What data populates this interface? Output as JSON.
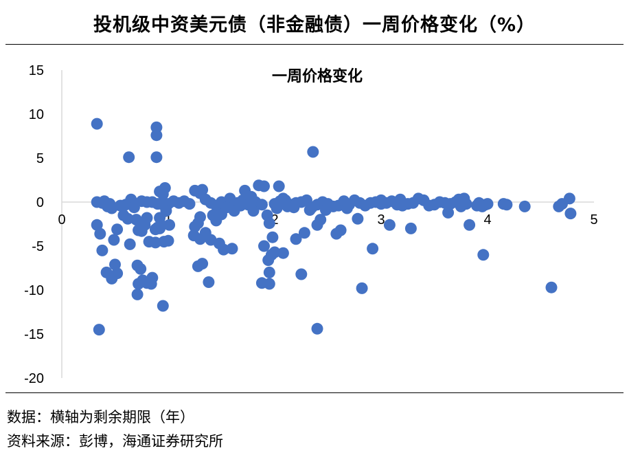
{
  "figure": {
    "title": "投机级中资美元债（非金融债）一周价格变化（%）",
    "source_note": "数据：横轴为剩余期限（年）",
    "source_credit": "资料来源：彭博，海通证券研究所"
  },
  "chart_data": {
    "type": "scatter",
    "title": "一周价格变化",
    "xlabel": "",
    "ylabel": "",
    "xlim": [
      0,
      5
    ],
    "ylim": [
      -20,
      15
    ],
    "xticks": [
      0,
      1,
      2,
      3,
      4,
      5
    ],
    "yticks": [
      15,
      10,
      5,
      0,
      -5,
      -10,
      -15,
      -20
    ],
    "grid": false,
    "marker_color": "#4472C4",
    "points": [
      [
        0.35,
        -14.5
      ],
      [
        0.33,
        -2.6
      ],
      [
        0.36,
        -3.6
      ],
      [
        0.38,
        -5.5
      ],
      [
        0.42,
        -8.0
      ],
      [
        0.47,
        -8.7
      ],
      [
        0.5,
        -7.1
      ],
      [
        0.52,
        -8.1
      ],
      [
        0.49,
        -4.3
      ],
      [
        0.52,
        -3.1
      ],
      [
        0.47,
        -0.7
      ],
      [
        0.43,
        -0.5
      ],
      [
        0.38,
        -0.1
      ],
      [
        0.4,
        0.1
      ],
      [
        0.33,
        0.0
      ],
      [
        0.45,
        -0.2
      ],
      [
        0.55,
        -0.4
      ],
      [
        0.6,
        -0.3
      ],
      [
        0.62,
        -1.9
      ],
      [
        0.58,
        -1.5
      ],
      [
        0.65,
        0.3
      ],
      [
        0.68,
        -0.6
      ],
      [
        0.7,
        -2.0
      ],
      [
        0.72,
        -3.2
      ],
      [
        0.75,
        -3.3
      ],
      [
        0.78,
        -2.6
      ],
      [
        0.8,
        -1.8
      ],
      [
        0.64,
        -4.8
      ],
      [
        0.71,
        -7.2
      ],
      [
        0.74,
        -7.6
      ],
      [
        0.76,
        -8.9
      ],
      [
        0.8,
        -9.2
      ],
      [
        0.72,
        -9.3
      ],
      [
        0.71,
        -10.5
      ],
      [
        0.85,
        -8.6
      ],
      [
        0.84,
        -9.3
      ],
      [
        0.63,
        5.1
      ],
      [
        0.75,
        0.1
      ],
      [
        0.8,
        0.0
      ],
      [
        0.85,
        0.0
      ],
      [
        0.9,
        -0.2
      ],
      [
        0.95,
        -0.3
      ],
      [
        0.98,
        -0.5
      ],
      [
        1.0,
        -0.2
      ],
      [
        1.05,
        0.1
      ],
      [
        0.82,
        -4.5
      ],
      [
        0.92,
        -1.8
      ],
      [
        0.98,
        -1.0
      ],
      [
        0.89,
        8.5
      ],
      [
        0.89,
        7.6
      ],
      [
        0.92,
        1.2
      ],
      [
        0.89,
        5.1
      ],
      [
        0.95,
        0.9
      ],
      [
        0.97,
        1.6
      ],
      [
        0.88,
        -3.1
      ],
      [
        0.9,
        -2.9
      ],
      [
        0.93,
        -2.6
      ],
      [
        0.96,
        -4.5
      ],
      [
        1.0,
        -4.4
      ],
      [
        0.88,
        -4.6
      ],
      [
        0.92,
        -3.0
      ],
      [
        1.01,
        -2.6
      ],
      [
        0.95,
        -11.8
      ],
      [
        0.33,
        8.9
      ],
      [
        1.1,
        -0.1
      ],
      [
        1.15,
        0.1
      ],
      [
        1.2,
        -0.2
      ],
      [
        1.25,
        1.3
      ],
      [
        1.3,
        1.0
      ],
      [
        1.32,
        1.4
      ],
      [
        1.28,
        -2.4
      ],
      [
        1.3,
        -1.7
      ],
      [
        1.25,
        -2.8
      ],
      [
        1.24,
        -3.8
      ],
      [
        1.3,
        -4.2
      ],
      [
        1.35,
        -3.5
      ],
      [
        1.4,
        -4.3
      ],
      [
        1.28,
        -7.3
      ],
      [
        1.32,
        -7.0
      ],
      [
        1.35,
        0.3
      ],
      [
        1.4,
        -0.1
      ],
      [
        1.45,
        -0.4
      ],
      [
        1.42,
        -1.5
      ],
      [
        1.45,
        -2.1
      ],
      [
        1.5,
        -1.4
      ],
      [
        1.55,
        -0.3
      ],
      [
        1.58,
        0.4
      ],
      [
        1.6,
        -0.2
      ],
      [
        1.48,
        -4.7
      ],
      [
        1.52,
        -5.4
      ],
      [
        1.6,
        -5.3
      ],
      [
        1.38,
        -9.1
      ],
      [
        1.65,
        -0.1
      ],
      [
        1.7,
        0.2
      ],
      [
        1.72,
        1.3
      ],
      [
        1.78,
        0.6
      ],
      [
        1.82,
        0.0
      ],
      [
        1.85,
        1.9
      ],
      [
        1.9,
        1.8
      ],
      [
        1.8,
        -1.0
      ],
      [
        1.88,
        -0.3
      ],
      [
        1.93,
        -1.5
      ],
      [
        1.95,
        -2.4
      ],
      [
        1.98,
        -4.0
      ],
      [
        1.9,
        -5.0
      ],
      [
        1.94,
        -6.6
      ],
      [
        1.97,
        -6.0
      ],
      [
        2.0,
        -5.7
      ],
      [
        1.95,
        -8.0
      ],
      [
        1.88,
        -9.2
      ],
      [
        1.95,
        -9.3
      ],
      [
        2.0,
        -0.2
      ],
      [
        2.05,
        0.1
      ],
      [
        2.1,
        0.2
      ],
      [
        2.04,
        1.8
      ],
      [
        2.08,
        0.4
      ],
      [
        2.12,
        -0.5
      ],
      [
        2.15,
        -0.3
      ],
      [
        2.2,
        -4.2
      ],
      [
        2.08,
        -5.8
      ],
      [
        2.2,
        -0.1
      ],
      [
        2.25,
        0.0
      ],
      [
        2.3,
        0.2
      ],
      [
        2.35,
        -0.6
      ],
      [
        2.4,
        -0.3
      ],
      [
        2.28,
        -3.5
      ],
      [
        2.4,
        -2.6
      ],
      [
        2.43,
        -2.0
      ],
      [
        2.25,
        -8.2
      ],
      [
        2.36,
        5.7
      ],
      [
        2.4,
        -14.4
      ],
      [
        2.45,
        0.0
      ],
      [
        2.5,
        -0.2
      ],
      [
        2.55,
        -0.5
      ],
      [
        2.6,
        -0.4
      ],
      [
        2.58,
        -3.6
      ],
      [
        2.62,
        -3.2
      ],
      [
        2.65,
        0.1
      ],
      [
        2.7,
        -0.3
      ],
      [
        2.75,
        0.2
      ],
      [
        2.8,
        -0.1
      ],
      [
        2.85,
        -0.4
      ],
      [
        2.78,
        -1.9
      ],
      [
        2.82,
        -9.8
      ],
      [
        2.9,
        -0.1
      ],
      [
        2.92,
        -5.3
      ],
      [
        2.95,
        0.0
      ],
      [
        3.0,
        -0.2
      ],
      [
        3.05,
        -0.1
      ],
      [
        3.1,
        0.1
      ],
      [
        3.15,
        -0.3
      ],
      [
        3.2,
        -0.4
      ],
      [
        3.08,
        -2.6
      ],
      [
        3.25,
        -0.2
      ],
      [
        3.3,
        -0.1
      ],
      [
        3.35,
        0.4
      ],
      [
        3.4,
        0.2
      ],
      [
        3.45,
        -0.4
      ],
      [
        3.5,
        -0.3
      ],
      [
        3.55,
        0.0
      ],
      [
        3.6,
        -0.1
      ],
      [
        3.28,
        -3.0
      ],
      [
        3.65,
        -0.2
      ],
      [
        3.7,
        0.0
      ],
      [
        3.73,
        0.3
      ],
      [
        3.75,
        -0.5
      ],
      [
        3.78,
        0.4
      ],
      [
        3.8,
        -0.2
      ],
      [
        3.63,
        -1.2
      ],
      [
        3.83,
        -2.6
      ],
      [
        3.9,
        -0.4
      ],
      [
        3.92,
        -0.1
      ],
      [
        3.95,
        -0.5
      ],
      [
        3.98,
        -0.3
      ],
      [
        4.0,
        -0.2
      ],
      [
        3.96,
        -6.0
      ],
      [
        4.15,
        -0.2
      ],
      [
        4.18,
        -0.3
      ],
      [
        4.35,
        -0.5
      ],
      [
        4.6,
        -9.7
      ],
      [
        4.67,
        -0.5
      ],
      [
        4.7,
        -0.2
      ],
      [
        4.77,
        0.4
      ],
      [
        4.78,
        -1.3
      ],
      [
        1.5,
        0.0
      ],
      [
        1.55,
        -0.6
      ],
      [
        1.62,
        -1.0
      ],
      [
        1.68,
        -0.4
      ],
      [
        1.75,
        -0.3
      ],
      [
        2.02,
        -0.7
      ],
      [
        2.18,
        -0.6
      ],
      [
        2.33,
        -0.9
      ],
      [
        2.48,
        -0.9
      ],
      [
        2.68,
        -0.7
      ],
      [
        3.0,
        0.2
      ],
      [
        3.18,
        0.3
      ]
    ]
  }
}
